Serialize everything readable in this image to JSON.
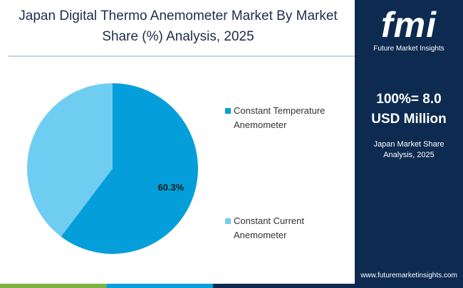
{
  "chart_data": {
    "type": "pie",
    "title": "Japan Digital Thermo Anemometer Market By Market Share (%) Analysis, 2025",
    "categories": [
      "Constant Temperature Anemometer",
      "Constant Current Anemometer"
    ],
    "values": [
      60.3,
      39.7
    ],
    "value_labels": [
      "60.3%",
      null
    ],
    "colors": [
      "#049fda",
      "#6fcdf2"
    ],
    "legend": "right"
  },
  "sidebar": {
    "logo": "fmi",
    "brand": "Future Market Insights",
    "total": "100%= 8.0 USD Million",
    "subtitle": "Japan Market Share Analysis, 2025",
    "website": "www.futuremarketinsights.com"
  }
}
